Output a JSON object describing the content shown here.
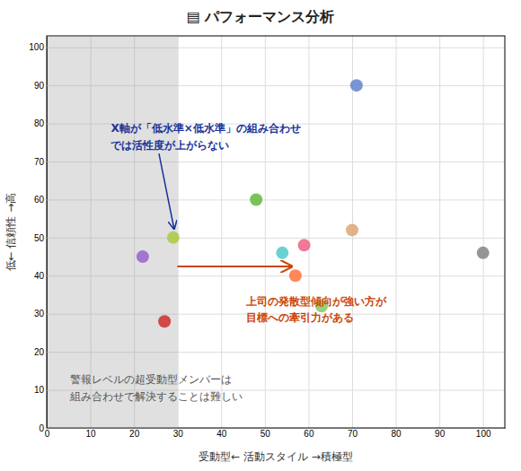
{
  "chart_data": {
    "type": "scatter",
    "title": "▤ パフォーマンス分析",
    "x_label": "受動型← 活動スタイル →積極型",
    "y_label": "低← 信頼性 →高",
    "xlim": [
      0,
      105
    ],
    "ylim": [
      0,
      103
    ],
    "xticks": [
      0,
      10,
      20,
      30,
      40,
      50,
      60,
      70,
      80,
      90,
      100
    ],
    "yticks": [
      0,
      10,
      20,
      30,
      40,
      50,
      60,
      70,
      80,
      90,
      100
    ],
    "grid": true,
    "shaded_range": [
      0,
      30
    ],
    "x": [
      27,
      29,
      22,
      48,
      54,
      57,
      59,
      63,
      70,
      71,
      100
    ],
    "values": [
      28,
      50,
      45,
      60,
      46,
      40,
      48,
      32,
      52,
      90,
      46
    ],
    "colors": [
      "#cc3333",
      "#aacc44",
      "#9966cc",
      "#66bb44",
      "#55cccc",
      "#ff7744",
      "#ee6688",
      "#88cc66",
      "#ddaa77",
      "#6688cc",
      "#888888"
    ],
    "annotations": [
      {
        "text": "X軸が「低水準×低水準」の組み合わせ\nでは活性度が上がらない",
        "color": "#1a3399"
      },
      {
        "text": "上司の発散型傾向が強い方が\n目標への牽引力がある",
        "color": "#cc4400"
      },
      {
        "text": "警報レベルの超受動型メンバーは\n組み合わせで解決することは難しい",
        "color": "#555555"
      }
    ]
  }
}
